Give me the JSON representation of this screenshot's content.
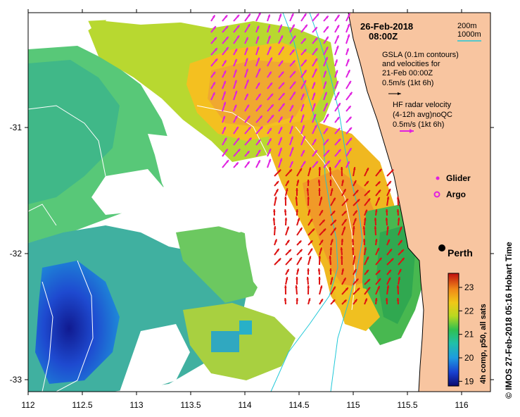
{
  "map": {
    "date": "26-Feb-2018",
    "time": "08:00Z",
    "x_ticks": [
      "112",
      "112.5",
      "113",
      "113.5",
      "114",
      "114.5",
      "115",
      "115.5",
      "116"
    ],
    "y_ticks": [
      "-31",
      "-32",
      "-33"
    ],
    "x_range": [
      112,
      116.3
    ],
    "y_range": [
      -30.1,
      -33.1
    ]
  },
  "legend": {
    "contour_200": "200m",
    "contour_1000": "1000m",
    "gsla_line1": "GSLA (0.1m contours)",
    "gsla_line2": "and velocities for",
    "gsla_line3": "21-Feb 00:00Z",
    "gsla_scale": "0.5m/s (1kt 6h)",
    "hf_line1": "HF radar velocity",
    "hf_line2": "(4-12h avg)noQC",
    "hf_scale": "0.5m/s (1kt 6h)",
    "glider": "Glider",
    "argo": "Argo",
    "city": "Perth"
  },
  "colorbar": {
    "ticks": [
      "23",
      "22",
      "21",
      "20",
      "19"
    ],
    "range": [
      18.8,
      23.6
    ],
    "label": "4h comp, p50, all sats"
  },
  "footer": {
    "credit": "© IMOS 27-Feb-2018 05:16 Hobart Time"
  },
  "colors": {
    "land": "#f8c5a0",
    "hf_arrow": "#e020e0",
    "gsla_arrow": "#dd1111",
    "contour": "#20c8d8"
  }
}
